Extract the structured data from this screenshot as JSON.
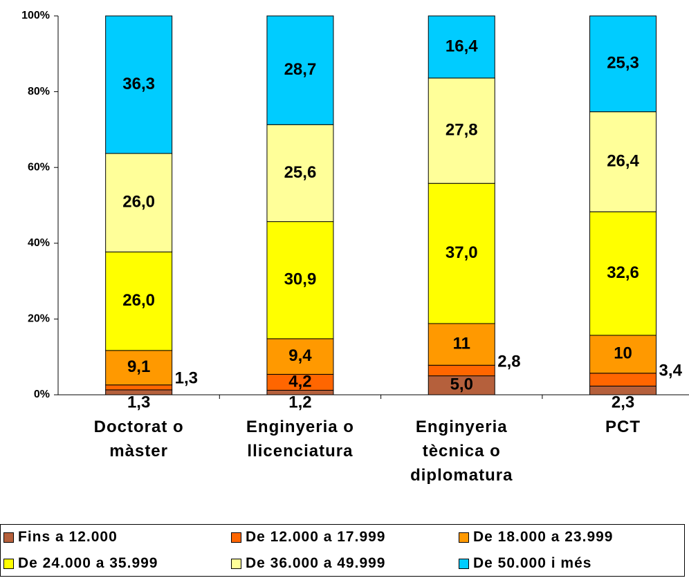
{
  "chart_data": {
    "type": "stacked_bar",
    "categories": [
      "Doctorat o màster",
      "Enginyeria o llicenciatura",
      "Enginyeria tècnica o diplomatura",
      "PCT"
    ],
    "series": [
      {
        "name": "Fins a 12.000",
        "color": "#b5603c",
        "values": [
          1.3,
          1.2,
          5.0,
          2.3
        ],
        "value_labels": [
          "1,3",
          "1,2",
          "5,0",
          "2,3"
        ]
      },
      {
        "name": "De 12.000 a 17.999",
        "color": "#ff6600",
        "values": [
          1.3,
          4.2,
          2.8,
          3.4
        ],
        "value_labels": [
          "1,3",
          "4,2",
          "2,8",
          "3,4"
        ]
      },
      {
        "name": "De 18.000 a 23.999",
        "color": "#ff9900",
        "values": [
          9.1,
          9.4,
          11,
          10
        ],
        "value_labels": [
          "9,1",
          "9,4",
          "11",
          "10"
        ]
      },
      {
        "name": "De 24.000 a 35.999",
        "color": "#ffff00",
        "values": [
          26.0,
          30.9,
          37.0,
          32.6
        ],
        "value_labels": [
          "26,0",
          "30,9",
          "37,0",
          "32,6"
        ]
      },
      {
        "name": "De 36.000 a 49.999",
        "color": "#ffff99",
        "values": [
          26.0,
          25.6,
          27.8,
          26.4
        ],
        "value_labels": [
          "26,0",
          "25,6",
          "27,8",
          "26,4"
        ]
      },
      {
        "name": "De 50.000 i més",
        "color": "#00ccff",
        "values": [
          36.3,
          28.7,
          16.4,
          25.3
        ],
        "value_labels": [
          "36,3",
          "28,7",
          "16,4",
          "25,3"
        ]
      }
    ],
    "ylim": [
      0,
      100
    ],
    "yticks": [
      {
        "value": 0,
        "label": "0%"
      },
      {
        "value": 20,
        "label": "20%"
      },
      {
        "value": 40,
        "label": "40%"
      },
      {
        "value": 60,
        "label": "60%"
      },
      {
        "value": 80,
        "label": "80%"
      },
      {
        "value": 100,
        "label": "100%"
      }
    ],
    "grid": false
  }
}
